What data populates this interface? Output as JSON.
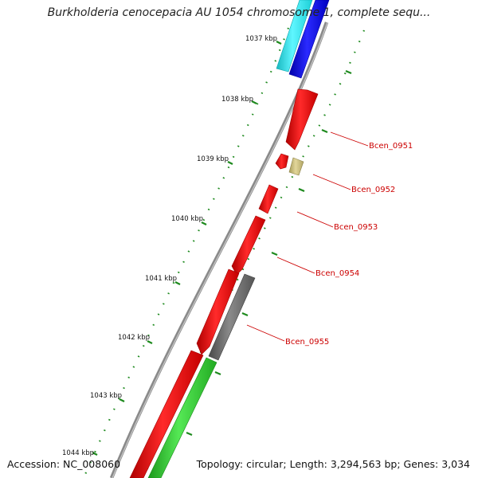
{
  "title": "Burkholderia cenocepacia AU 1054 chromosome 1, complete sequ...",
  "accession_text": "Accession: NC_008060",
  "topology_text": "Topology: circular; Length: 3,294,563 bp; Genes: 3,034",
  "scale_labels": [
    "1037 kbp",
    "1038 kbp",
    "1039 kbp",
    "1040 kbp",
    "1041 kbp",
    "1042 kbp",
    "1043 kbp",
    "1044 kbp"
  ],
  "gene_labels": [
    "Bcen_0951",
    "Bcen_0952",
    "Bcen_0953",
    "Bcen_0954",
    "Bcen_0955"
  ],
  "colors": {
    "backbone": "#8a8a8a",
    "cds_red": "#ee1111",
    "cds_blue": "#1010ee",
    "cds_cyan": "#22e0e8",
    "cds_gray": "#6e6e6e",
    "cds_green": "#33c433",
    "cds_khaki": "#c8bb7a",
    "tick_green": "#1e8a1e",
    "label_red": "#cc0000"
  }
}
